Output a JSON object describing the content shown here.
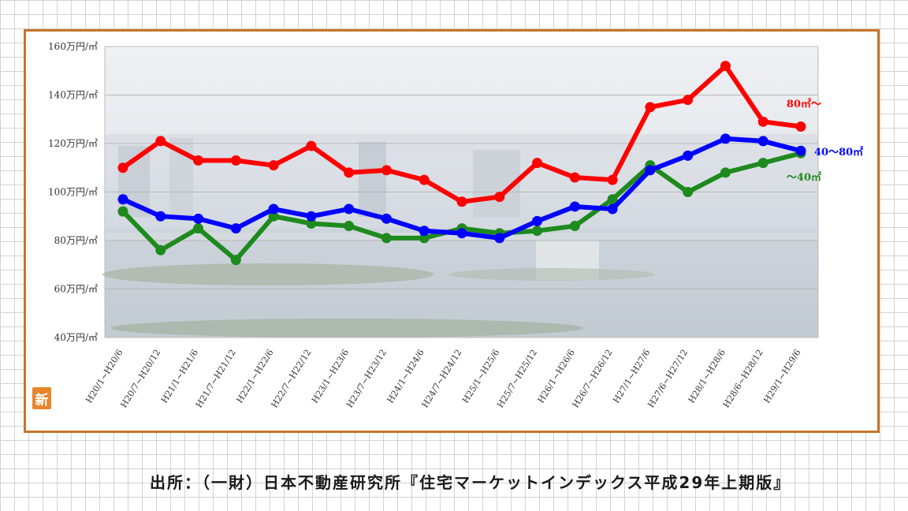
{
  "badge": {
    "text": "新"
  },
  "source": {
    "text": "出所：（一財）日本不動産研究所『住宅マーケットインデックス平成29年上期版』"
  },
  "colors": {
    "frame": "#c8742c",
    "red": "#ff0000",
    "blue": "#0000ff",
    "green": "#1e8a1e",
    "badge": "#e8862e"
  },
  "chart_data": {
    "type": "line",
    "categories": [
      "H20/1~H20/6",
      "H20/7~H20/12",
      "H21/1~H21/6",
      "H21/7~H21/12",
      "H22/1~H22/6",
      "H22/7~H22/12",
      "H23/1~H23/6",
      "H23/7~H23/12",
      "H24/1~H24/6",
      "H24/7~H24/12",
      "H25/1~H25/6",
      "H25/7~H25/12",
      "H26/1~H26/6",
      "H26/7~H26/12",
      "H27/1~H27/6",
      "H27/6~H27/12",
      "H28/1~H28/6",
      "H28/6~H28/12",
      "H29/1~H29/6"
    ],
    "y_ticks": [
      "160万円/㎡",
      "140万円/㎡",
      "120万円/㎡",
      "100万円/㎡",
      "80万円/㎡",
      "60万円/㎡",
      "40万円/㎡"
    ],
    "ylim": [
      40,
      160
    ],
    "grid": true,
    "series": [
      {
        "name": "80㎡～",
        "color": "#ff0000",
        "values": [
          110,
          121,
          113,
          113,
          111,
          119,
          108,
          109,
          105,
          96,
          98,
          112,
          106,
          105,
          135,
          138,
          152,
          129,
          127
        ]
      },
      {
        "name": "40～80㎡",
        "color": "#0000ff",
        "values": [
          97,
          90,
          89,
          85,
          93,
          90,
          93,
          89,
          84,
          83,
          81,
          88,
          94,
          93,
          109,
          115,
          122,
          121,
          117
        ]
      },
      {
        "name": "～40㎡",
        "color": "#1e8a1e",
        "values": [
          92,
          76,
          85,
          72,
          90,
          87,
          86,
          81,
          81,
          85,
          83,
          84,
          86,
          97,
          111,
          100,
          108,
          112,
          116
        ]
      }
    ]
  }
}
